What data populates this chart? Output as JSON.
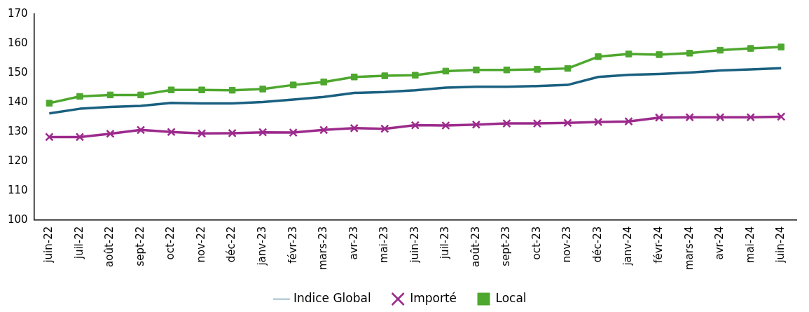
{
  "chart_data": {
    "type": "line",
    "categories": [
      "juin-22",
      "juil-22",
      "août-22",
      "sept-22",
      "oct-22",
      "nov-22",
      "déc-22",
      "janv-23",
      "févr-23",
      "mars-23",
      "avr-23",
      "mai-23",
      "juin-23",
      "juil-23",
      "août-23",
      "sept-23",
      "oct-23",
      "nov-23",
      "déc-23",
      "janv-24",
      "févr-24",
      "mars-24",
      "avr-24",
      "mai-24",
      "juin-24"
    ],
    "series": [
      {
        "name": "Indice Global",
        "color": "#1a6080",
        "marker": "none",
        "values": [
          136.2,
          137.8,
          138.4,
          138.8,
          139.8,
          139.6,
          139.6,
          140.1,
          140.9,
          141.8,
          143.2,
          143.5,
          144.1,
          145.0,
          145.3,
          145.3,
          145.5,
          145.9,
          148.6,
          149.3,
          149.6,
          150.1,
          150.8,
          151.2,
          151.6
        ]
      },
      {
        "name": "Importé",
        "color": "#9c2a8c",
        "marker": "cross",
        "values": [
          128.2,
          128.2,
          129.3,
          130.6,
          129.9,
          129.4,
          129.5,
          129.8,
          129.7,
          130.6,
          131.2,
          131.0,
          132.2,
          132.1,
          132.4,
          132.8,
          132.8,
          133.0,
          133.3,
          133.5,
          134.8,
          134.9,
          134.9,
          134.9,
          135.1
        ]
      },
      {
        "name": "Local",
        "color": "#4ea72e",
        "marker": "square",
        "values": [
          139.7,
          142.0,
          142.5,
          142.5,
          144.2,
          144.2,
          144.1,
          144.5,
          145.9,
          146.9,
          148.6,
          149.0,
          149.2,
          150.6,
          151.0,
          151.0,
          151.2,
          151.5,
          155.5,
          156.4,
          156.2,
          156.7,
          157.7,
          158.3,
          158.8
        ]
      }
    ],
    "ylim": [
      100,
      170
    ],
    "yticks": [
      100,
      110,
      120,
      130,
      140,
      150,
      160,
      170
    ],
    "grid": false,
    "legend": "bottom"
  }
}
